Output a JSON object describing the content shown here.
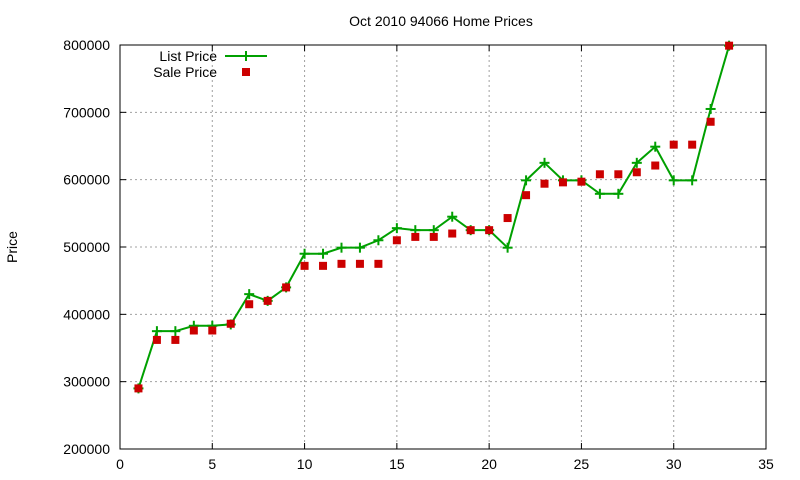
{
  "chart_data": {
    "type": "line",
    "title": "Oct 2010 94066 Home Prices",
    "xlabel": "",
    "ylabel": "Price",
    "xlim": [
      0,
      35
    ],
    "ylim": [
      200000,
      800000
    ],
    "x_ticks": [
      0,
      5,
      10,
      15,
      20,
      25,
      30,
      35
    ],
    "y_ticks": [
      200000,
      300000,
      400000,
      500000,
      600000,
      700000,
      800000
    ],
    "grid": true,
    "legend_position": "top-left",
    "series": [
      {
        "name": "List Price",
        "style": "line-plus",
        "color": "#00a000",
        "points": [
          [
            1,
            290000
          ],
          [
            2,
            375000
          ],
          [
            3,
            375000
          ],
          [
            4,
            383000
          ],
          [
            5,
            383000
          ],
          [
            6,
            385000
          ],
          [
            7,
            430000
          ],
          [
            8,
            420000
          ],
          [
            9,
            440000
          ],
          [
            10,
            490000
          ],
          [
            11,
            490000
          ],
          [
            12,
            499000
          ],
          [
            13,
            499000
          ],
          [
            14,
            510000
          ],
          [
            15,
            528000
          ],
          [
            16,
            525000
          ],
          [
            17,
            525000
          ],
          [
            18,
            545000
          ],
          [
            19,
            525000
          ],
          [
            20,
            525000
          ],
          [
            21,
            499000
          ],
          [
            22,
            599000
          ],
          [
            23,
            625000
          ],
          [
            24,
            599000
          ],
          [
            25,
            599000
          ],
          [
            26,
            579000
          ],
          [
            27,
            579000
          ],
          [
            28,
            625000
          ],
          [
            29,
            649000
          ],
          [
            30,
            599000
          ],
          [
            31,
            599000
          ],
          [
            32,
            705000
          ],
          [
            33,
            799000
          ]
        ]
      },
      {
        "name": "Sale Price",
        "style": "square-points",
        "color": "#cc0000",
        "points": [
          [
            1,
            290000
          ],
          [
            2,
            362000
          ],
          [
            3,
            362000
          ],
          [
            4,
            376000
          ],
          [
            5,
            376000
          ],
          [
            6,
            386000
          ],
          [
            7,
            415000
          ],
          [
            8,
            420000
          ],
          [
            9,
            440000
          ],
          [
            10,
            472000
          ],
          [
            11,
            472000
          ],
          [
            12,
            475000
          ],
          [
            13,
            475000
          ],
          [
            14,
            475000
          ],
          [
            15,
            510000
          ],
          [
            16,
            515000
          ],
          [
            17,
            515000
          ],
          [
            18,
            520000
          ],
          [
            19,
            525000
          ],
          [
            20,
            525000
          ],
          [
            21,
            543000
          ],
          [
            22,
            577000
          ],
          [
            23,
            594000
          ],
          [
            24,
            596000
          ],
          [
            25,
            597000
          ],
          [
            26,
            608000
          ],
          [
            27,
            608000
          ],
          [
            28,
            611000
          ],
          [
            29,
            621000
          ],
          [
            30,
            652000
          ],
          [
            31,
            652000
          ],
          [
            32,
            686000
          ],
          [
            33,
            799000
          ]
        ]
      }
    ]
  }
}
